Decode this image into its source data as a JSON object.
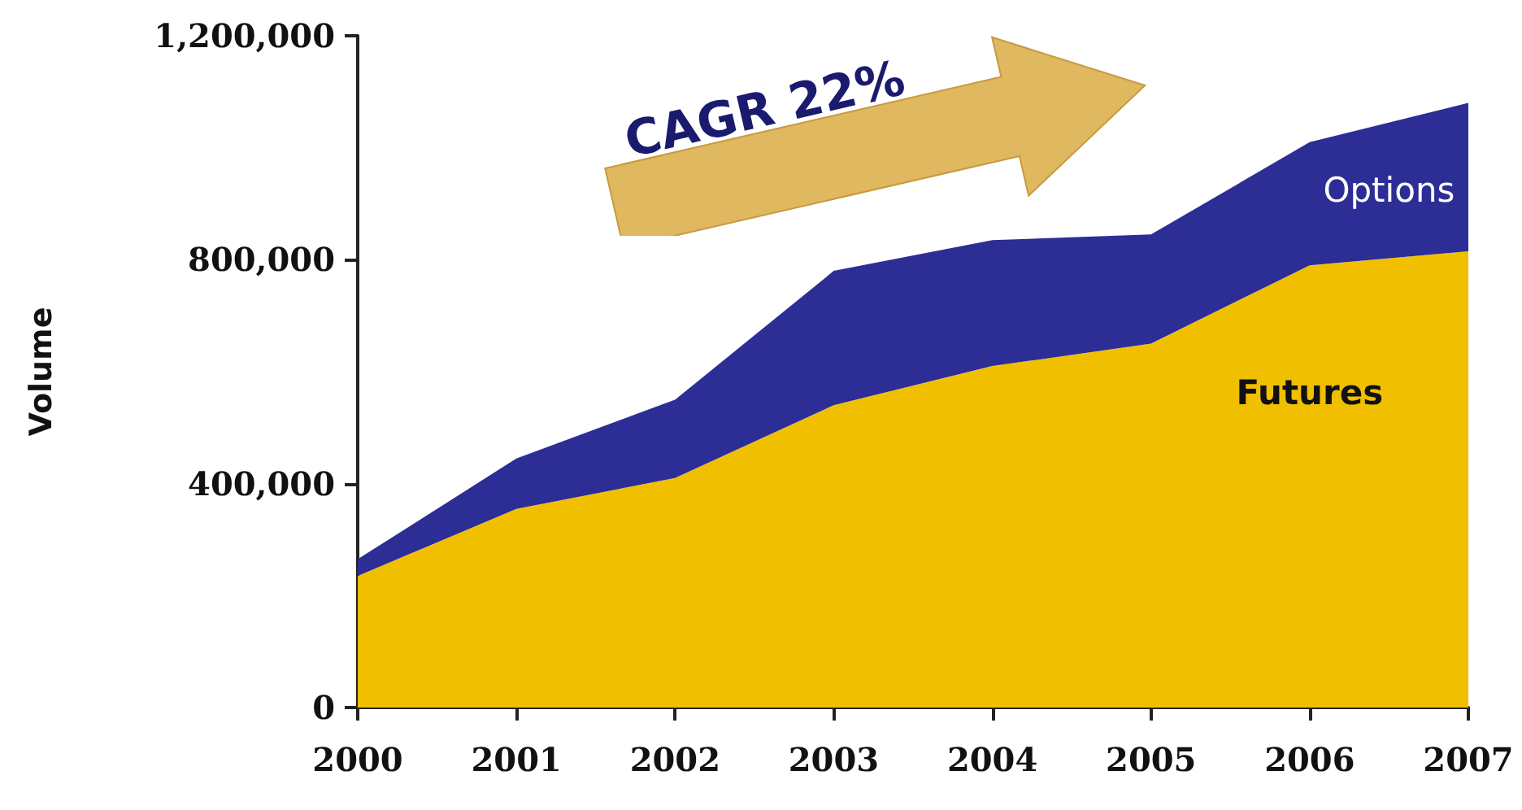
{
  "chart_data": {
    "type": "area",
    "stacked": true,
    "ylabel": "Volume",
    "categories": [
      "2000",
      "2001",
      "2002",
      "2003",
      "2004",
      "2005",
      "2006",
      "2007"
    ],
    "series": [
      {
        "name": "Futures",
        "color": "#f0c000",
        "values": [
          235000,
          355000,
          410000,
          540000,
          610000,
          650000,
          790000,
          815000
        ]
      },
      {
        "name": "Options",
        "color": "#2d2d96",
        "values": [
          30000,
          90000,
          140000,
          240000,
          225000,
          195000,
          220000,
          265000
        ]
      }
    ],
    "ylim": [
      0,
      1200000
    ],
    "yticks": [
      {
        "value": 0,
        "label": "0"
      },
      {
        "value": 400000,
        "label": "400,000"
      },
      {
        "value": 800000,
        "label": "800,000"
      },
      {
        "value": 1200000,
        "label": "1,200,000"
      }
    ],
    "annotations": [
      "CAGR 22%"
    ]
  }
}
